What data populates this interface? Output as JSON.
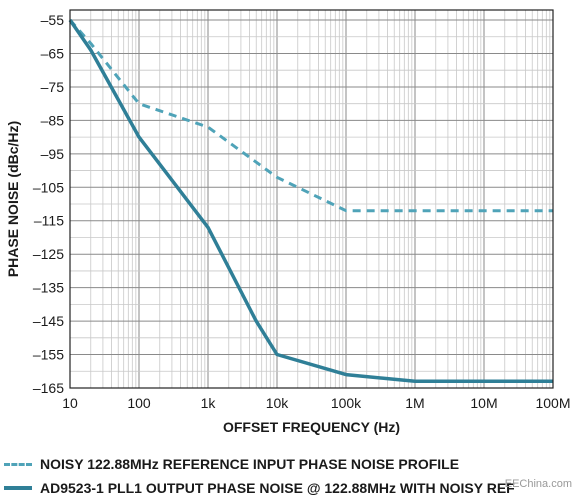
{
  "chart_data": {
    "type": "line",
    "xscale": "log",
    "xlabel": "OFFSET FREQUENCY (Hz)",
    "ylabel": "PHASE NOISE (dBc/Hz)",
    "xlim": [
      10,
      100000000
    ],
    "ylim": [
      -165,
      -52
    ],
    "x_ticks": [
      10,
      100,
      1000,
      10000,
      100000,
      1000000,
      10000000,
      100000000
    ],
    "x_tick_labels": [
      "10",
      "100",
      "1k",
      "10k",
      "100k",
      "1M",
      "10M",
      "100M"
    ],
    "y_ticks": [
      -55,
      -65,
      -75,
      -85,
      -95,
      -105,
      -115,
      -125,
      -135,
      -145,
      -155,
      -165
    ],
    "y_tick_labels": [
      "-55",
      "-65",
      "-75",
      "-85",
      "-95",
      "-105",
      "-115",
      "-125",
      "-135",
      "-145",
      "-155",
      "-165"
    ],
    "grid": true,
    "legend_position": "bottom",
    "series": [
      {
        "name": "NOISY 122.88MHz REFERENCE INPUT PHASE NOISE PROFILE",
        "style": "dashed",
        "color": "#4fa3b8",
        "x": [
          10,
          20,
          100,
          1000,
          10000,
          100000,
          1000000,
          10000000,
          100000000
        ],
        "y": [
          -55,
          -62,
          -80,
          -87,
          -102,
          -112,
          -112,
          -112,
          -112
        ]
      },
      {
        "name": "AD9523-1 PLL1 OUTPUT PHASE NOISE @ 122.88MHz WITH NOISY REF",
        "style": "solid",
        "color": "#2f7f97",
        "x": [
          10,
          20,
          100,
          1000,
          5000,
          10000,
          100000,
          1000000,
          10000000,
          100000000
        ],
        "y": [
          -55,
          -64,
          -90,
          -117,
          -145,
          -155,
          -161,
          -163,
          -163,
          -163
        ]
      }
    ]
  },
  "watermark": "EEChina.com"
}
